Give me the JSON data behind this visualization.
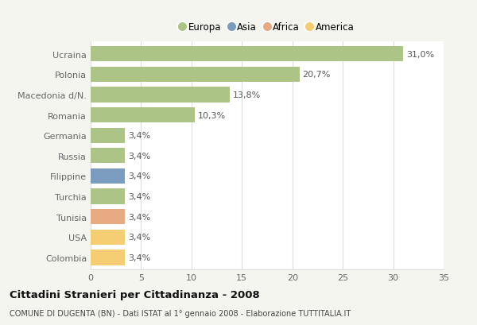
{
  "countries": [
    "Ucraina",
    "Polonia",
    "Macedonia d/N.",
    "Romania",
    "Germania",
    "Russia",
    "Filippine",
    "Turchia",
    "Tunisia",
    "USA",
    "Colombia"
  ],
  "values": [
    31.0,
    20.7,
    13.8,
    10.3,
    3.4,
    3.4,
    3.4,
    3.4,
    3.4,
    3.4,
    3.4
  ],
  "labels": [
    "31,0%",
    "20,7%",
    "13,8%",
    "10,3%",
    "3,4%",
    "3,4%",
    "3,4%",
    "3,4%",
    "3,4%",
    "3,4%",
    "3,4%"
  ],
  "colors": [
    "#adc487",
    "#adc487",
    "#adc487",
    "#adc487",
    "#adc487",
    "#adc487",
    "#7b9bbf",
    "#adc487",
    "#e8aa82",
    "#f5cd72",
    "#f5cd72"
  ],
  "legend_labels": [
    "Europa",
    "Asia",
    "Africa",
    "America"
  ],
  "legend_colors": [
    "#adc487",
    "#7b9bbf",
    "#e8aa82",
    "#f5cd72"
  ],
  "title": "Cittadini Stranieri per Cittadinanza - 2008",
  "subtitle": "COMUNE DI DUGENTA (BN) - Dati ISTAT al 1° gennaio 2008 - Elaborazione TUTTITALIA.IT",
  "xlim": [
    0,
    35
  ],
  "xticks": [
    0,
    5,
    10,
    15,
    20,
    25,
    30,
    35
  ],
  "background_color": "#f5f5f0",
  "plot_bg_color": "#ffffff",
  "grid_color": "#dddddd"
}
